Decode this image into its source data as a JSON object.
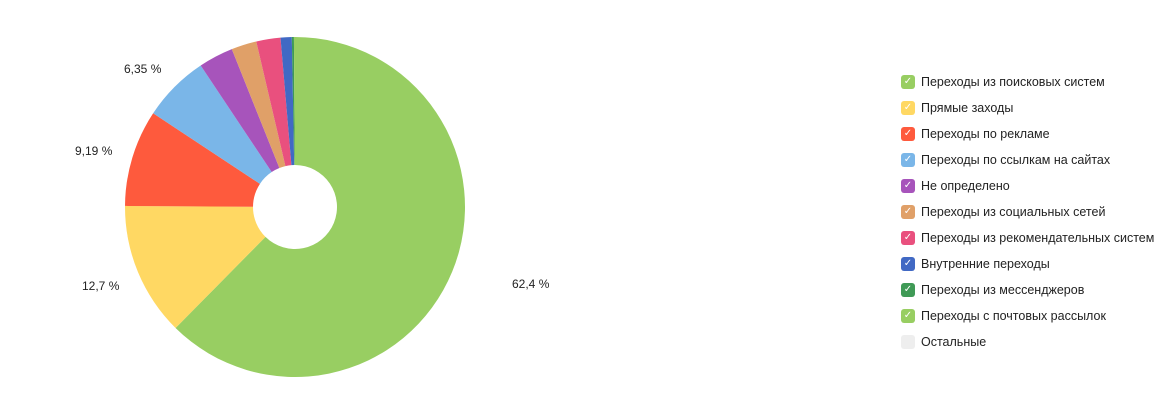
{
  "chart_data": {
    "type": "pie",
    "donut": true,
    "series": [
      {
        "name": "Переходы из поисковых систем",
        "value": 62.4,
        "label": "62,4 %",
        "color": "#98ce62"
      },
      {
        "name": "Прямые заходы",
        "value": 12.7,
        "label": "12,7 %",
        "color": "#ffd863"
      },
      {
        "name": "Переходы по рекламе",
        "value": 9.19,
        "label": "9,19 %",
        "color": "#fe5a3d"
      },
      {
        "name": "Переходы по ссылкам на сайтах",
        "value": 6.35,
        "label": "6,35 %",
        "color": "#7ab6e8"
      },
      {
        "name": "Не определено",
        "value": 3.3,
        "label": "",
        "color": "#a754bb"
      },
      {
        "name": "Переходы из социальных сетей",
        "value": 2.4,
        "label": "",
        "color": "#e0a068"
      },
      {
        "name": "Переходы из рекомендательных систем",
        "value": 2.3,
        "label": "",
        "color": "#e9507e"
      },
      {
        "name": "Внутренние переходы",
        "value": 1.06,
        "label": "",
        "color": "#4169c4"
      },
      {
        "name": "Переходы из мессенджеров",
        "value": 0.2,
        "label": "",
        "color": "#3f9a56"
      },
      {
        "name": "Переходы с почтовых рассылок",
        "value": 0.1,
        "label": "",
        "color": "#98ce62"
      },
      {
        "name": "Остальные",
        "value": 0,
        "label": "",
        "color": "#eeeeee"
      }
    ],
    "legend": "right"
  }
}
